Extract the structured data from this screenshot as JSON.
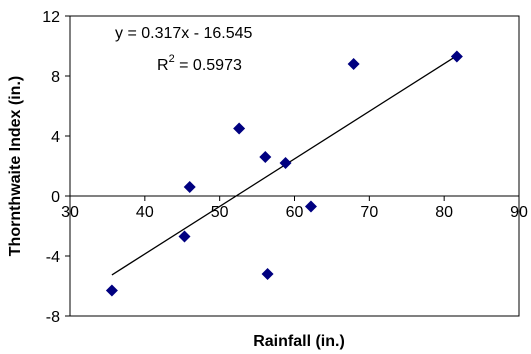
{
  "chart_data": {
    "type": "scatter",
    "title": "",
    "xlabel": "Rainfall (in.)",
    "ylabel": "Thornthwaite Index (in.)",
    "xlim": [
      30,
      90
    ],
    "ylim": [
      -8,
      12
    ],
    "x_ticks": [
      "30",
      "40",
      "50",
      "60",
      "70",
      "80",
      "90"
    ],
    "y_ticks": [
      "-8",
      "-4",
      "0",
      "4",
      "8",
      "12"
    ],
    "grid": false,
    "legend": "none",
    "series": [
      {
        "name": "",
        "marker": "diamond",
        "color": "#000080",
        "points": [
          {
            "x": 35.6,
            "y": -6.3
          },
          {
            "x": 45.3,
            "y": -2.7
          },
          {
            "x": 46.0,
            "y": 0.6
          },
          {
            "x": 52.6,
            "y": 4.5
          },
          {
            "x": 56.1,
            "y": 2.6
          },
          {
            "x": 56.4,
            "y": -5.2
          },
          {
            "x": 58.8,
            "y": 2.2
          },
          {
            "x": 62.2,
            "y": -0.7
          },
          {
            "x": 67.9,
            "y": 8.8
          },
          {
            "x": 81.7,
            "y": 9.3
          }
        ]
      }
    ],
    "trendline": {
      "type": "linear",
      "slope": 0.317,
      "intercept": -16.545,
      "x_range": [
        35.6,
        81.7
      ],
      "color": "#000000"
    },
    "annotations": {
      "equation": "y = 0.317x - 16.545",
      "r2_prefix": "R",
      "r2_superscript": "2",
      "r2_suffix": " = 0.5973"
    }
  }
}
